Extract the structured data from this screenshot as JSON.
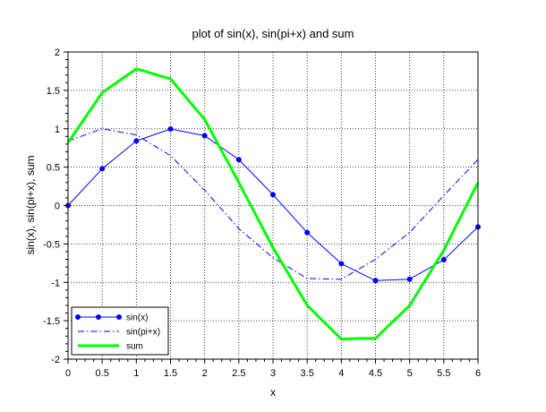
{
  "chart_data": {
    "type": "line",
    "title": "plot of sin(x), sin(pi+x) and sum",
    "xlabel": "x",
    "ylabel": "sin(x), sin(pi+x), sum",
    "xlim": [
      0,
      6
    ],
    "ylim": [
      -2,
      2
    ],
    "xticks": [
      0,
      0.5,
      1,
      1.5,
      2,
      2.5,
      3,
      3.5,
      4,
      4.5,
      5,
      5.5,
      6
    ],
    "xtick_labels": [
      "0",
      "0.5",
      "1",
      "1.5",
      "2",
      "2.5",
      "3",
      "3.5",
      "4",
      "4.5",
      "5",
      "5.5",
      "6"
    ],
    "yticks": [
      -2,
      -1.5,
      -1,
      -0.5,
      0,
      0.5,
      1,
      1.5,
      2
    ],
    "ytick_labels": [
      "-2",
      "-1.5",
      "-1",
      "-0.5",
      "0",
      "0.5",
      "1",
      "1.5",
      "2"
    ],
    "grid": true,
    "legend_position": "bottom-left",
    "series": [
      {
        "name": "sin(x)",
        "color": "#0000ff",
        "style": "solid-with-markers",
        "x": [
          0,
          0.5,
          1,
          1.5,
          2,
          2.5,
          3,
          3.5,
          4,
          4.5,
          5,
          5.5,
          6
        ],
        "y": [
          0,
          0.479,
          0.841,
          0.997,
          0.909,
          0.598,
          0.141,
          -0.351,
          -0.757,
          -0.977,
          -0.959,
          -0.706,
          -0.279
        ]
      },
      {
        "name": "sin(pi+x)",
        "color": "#0000ff",
        "style": "dash-dot",
        "x": [
          0,
          0.5,
          1,
          1.5,
          2,
          2.5,
          3,
          3.5,
          4,
          4.5,
          5,
          5.5,
          6
        ],
        "y": [
          0.84,
          1.0,
          0.92,
          0.65,
          0.2,
          -0.3,
          -0.68,
          -0.95,
          -0.96,
          -0.7,
          -0.35,
          0.13,
          0.6
        ]
      },
      {
        "name": "sum",
        "color": "#00ff00",
        "style": "thick-solid",
        "x": [
          0,
          0.5,
          1,
          1.5,
          2,
          2.5,
          3,
          3.5,
          4,
          4.25,
          4.5,
          5,
          5.5,
          6
        ],
        "y": [
          0.82,
          1.47,
          1.78,
          1.65,
          1.12,
          0.3,
          -0.55,
          -1.3,
          -1.74,
          -1.73,
          -1.73,
          -1.3,
          -0.58,
          0.3
        ]
      }
    ]
  }
}
